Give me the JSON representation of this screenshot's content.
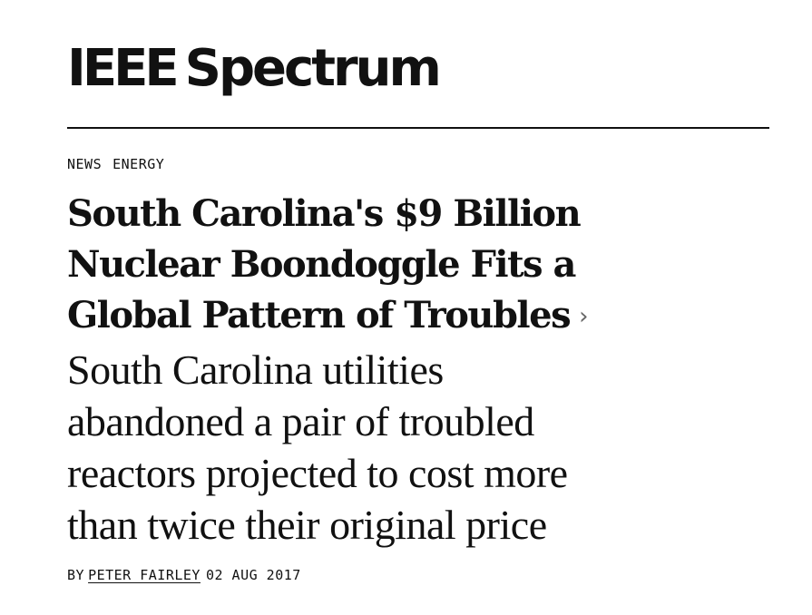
{
  "logo": {
    "ieee": "IEEE",
    "spectrum": "Spectrum"
  },
  "tags": [
    "NEWS",
    "ENERGY"
  ],
  "article": {
    "headline_lines": [
      "South Carolina's $9 Billion",
      "Nuclear Boondoggle Fits a",
      "Global Pattern of Troubles"
    ],
    "chevron": "›",
    "dek_lines": [
      "South Carolina utilities",
      "abandoned a pair of troubled",
      "reactors projected to cost more",
      "than twice their original price"
    ],
    "byline_prefix": "BY",
    "author": "PETER FAIRLEY",
    "date": "02 AUG 2017"
  }
}
